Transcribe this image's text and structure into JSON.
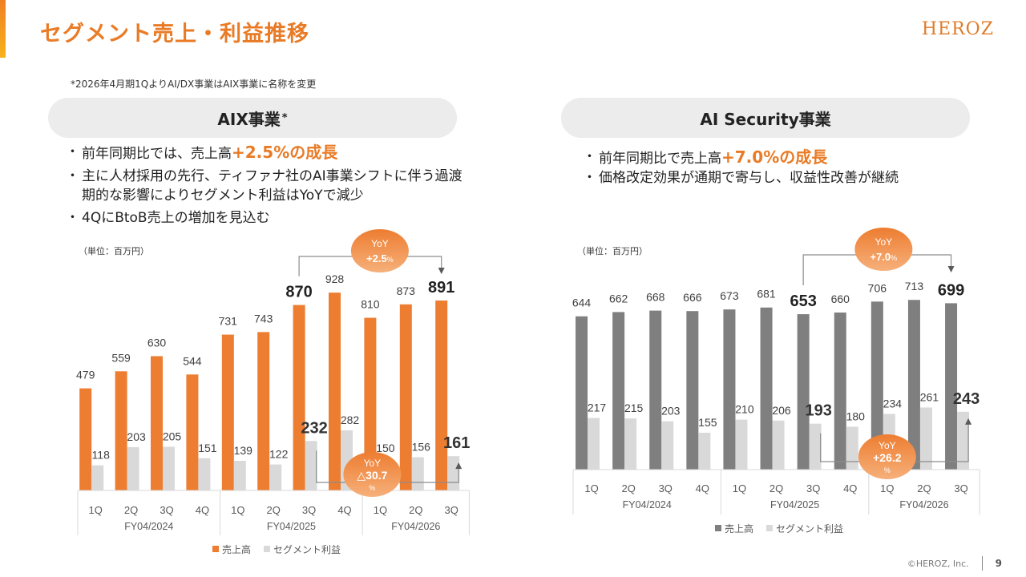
{
  "header": {
    "title": "セグメント売上・利益推移",
    "logo": "HEROZ",
    "note": "*2026年4月期1QよりAI/DX事業はAIX事業に名称を変更"
  },
  "left": {
    "heading": "AIX事業",
    "heading_mark": "*",
    "bullets": [
      {
        "pre": "前年同期比では、売上高",
        "hl": "+2.5%の成長"
      },
      {
        "pre": "主に人材採用の先行、ティファナ社のAI事業シフトに伴う過渡期的な影響によりセグメント利益はYoYで減少",
        "hl": ""
      },
      {
        "pre": "4QにBtoB売上の増加を見込む",
        "hl": ""
      }
    ],
    "unit": "（単位：百万円）"
  },
  "right": {
    "heading": "AI Security事業",
    "bullets": [
      {
        "pre": "前年同期比で売上高",
        "hl": "+7.0%の成長"
      },
      {
        "pre": "価格改定効果が通期で寄与し、収益性改善が継続",
        "hl": ""
      }
    ],
    "unit": "（単位：百万円）"
  },
  "footer": {
    "copyright": "©HEROZ, Inc.",
    "page": "9"
  },
  "colors": {
    "orange": "#ed7d31",
    "dark_gray": "#7f7f7f",
    "light_gray": "#d9d9d9",
    "accent": "#e97b26"
  },
  "chart_data": [
    {
      "type": "bar",
      "title": "AIX事業",
      "categories": [
        "1Q",
        "2Q",
        "3Q",
        "4Q",
        "1Q",
        "2Q",
        "3Q",
        "4Q",
        "1Q",
        "2Q",
        "3Q"
      ],
      "groups": [
        {
          "label": "FY04/2024",
          "count": 4
        },
        {
          "label": "FY04/2025",
          "count": 4
        },
        {
          "label": "FY04/2026",
          "count": 3
        }
      ],
      "series": [
        {
          "name": "売上高",
          "color": "#ed7d31",
          "values": [
            479,
            559,
            630,
            544,
            731,
            743,
            870,
            928,
            810,
            873,
            891
          ]
        },
        {
          "name": "セグメント利益",
          "color": "#d9d9d9",
          "values": [
            118,
            203,
            205,
            151,
            139,
            122,
            232,
            282,
            150,
            156,
            161
          ]
        }
      ],
      "emphasized": {
        "sales": [
          6,
          10
        ],
        "profit": [
          6,
          10
        ]
      },
      "ylim": [
        0,
        1000
      ],
      "legend": "bottom",
      "annotations": [
        {
          "series": "売上高",
          "from": 6,
          "to": 10,
          "label": "YoY",
          "value": "+2.5",
          "unit": "%"
        },
        {
          "series": "セグメント利益",
          "from": 6,
          "to": 10,
          "label": "YoY",
          "value": "△30.7",
          "unit": "%"
        }
      ]
    },
    {
      "type": "bar",
      "title": "AI Security事業",
      "categories": [
        "1Q",
        "2Q",
        "3Q",
        "4Q",
        "1Q",
        "2Q",
        "3Q",
        "4Q",
        "1Q",
        "2Q",
        "3Q"
      ],
      "groups": [
        {
          "label": "FY04/2024",
          "count": 4
        },
        {
          "label": "FY04/2025",
          "count": 4
        },
        {
          "label": "FY04/2026",
          "count": 3
        }
      ],
      "series": [
        {
          "name": "売上高",
          "color": "#7f7f7f",
          "values": [
            644,
            662,
            668,
            666,
            673,
            681,
            653,
            660,
            706,
            713,
            699
          ]
        },
        {
          "name": "セグメント利益",
          "color": "#d9d9d9",
          "values": [
            217,
            215,
            203,
            155,
            210,
            206,
            193,
            180,
            234,
            261,
            243
          ]
        }
      ],
      "emphasized": {
        "sales": [
          6,
          10
        ],
        "profit": [
          6,
          10
        ]
      },
      "ylim": [
        0,
        800
      ],
      "legend": "bottom",
      "annotations": [
        {
          "series": "売上高",
          "from": 6,
          "to": 10,
          "label": "YoY",
          "value": "+7.0",
          "unit": "%"
        },
        {
          "series": "セグメント利益",
          "from": 6,
          "to": 10,
          "label": "YoY",
          "value": "+26.2",
          "unit": "%"
        }
      ]
    }
  ]
}
